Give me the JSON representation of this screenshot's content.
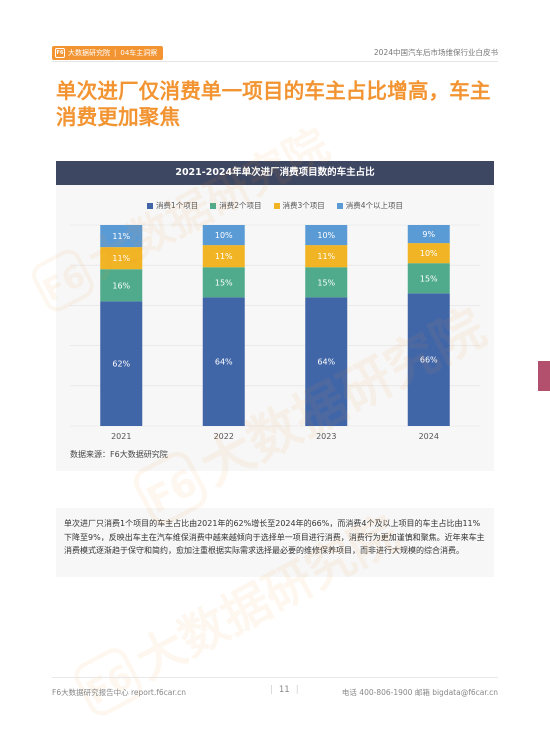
{
  "header": {
    "brand": "大数据研究院",
    "logo_glyph": "F6",
    "section": "04车主洞察",
    "report_title": "2024中国汽车后市场维保行业白皮书"
  },
  "page_title": "单次进厂仅消费单一项目的车主占比增高，车主消费更加聚焦",
  "chart_data": {
    "type": "bar",
    "stacked": true,
    "title": "2021-2024年单次进厂消费项目数的车主占比",
    "categories": [
      "2021",
      "2022",
      "2023",
      "2024"
    ],
    "series": [
      {
        "name": "消费1个项目",
        "color": "#4166a8",
        "values": [
          62,
          64,
          64,
          66
        ]
      },
      {
        "name": "消费2个项目",
        "color": "#4fab8c",
        "values": [
          16,
          15,
          15,
          15
        ]
      },
      {
        "name": "消费3个项目",
        "color": "#f1b424",
        "values": [
          11,
          11,
          11,
          10
        ]
      },
      {
        "name": "消费4个以上项目",
        "color": "#5b9bd5",
        "values": [
          11,
          10,
          10,
          9
        ]
      }
    ],
    "value_suffix": "%",
    "ylim": [
      0,
      100
    ],
    "grid": true,
    "legend_position": "top-center"
  },
  "source": "数据来源：F6大数据研究院",
  "description": "单次进厂只消费1个项目的车主占比由2021年的62%增长至2024年的66%，而消费4个及以上项目的车主占比由11%下降至9%，反映出车主在汽车维保消费中越来越倾向于选择单一项目进行消费，消费行为更加谨慎和聚焦。近年来车主消费模式逐渐趋于保守和简约，愈加注重根据实际需求选择最必要的维修保养项目，而非进行大规模的综合消费。",
  "footer": {
    "left": "F6大数据研究报告中心 report.f6car.cn",
    "page": "11",
    "right": "电话 400-806-1900  邮箱 bigdata@f6car.cn"
  },
  "watermark": {
    "text": "大数据研究院",
    "glyph": "F6",
    "color": "#f39432"
  }
}
